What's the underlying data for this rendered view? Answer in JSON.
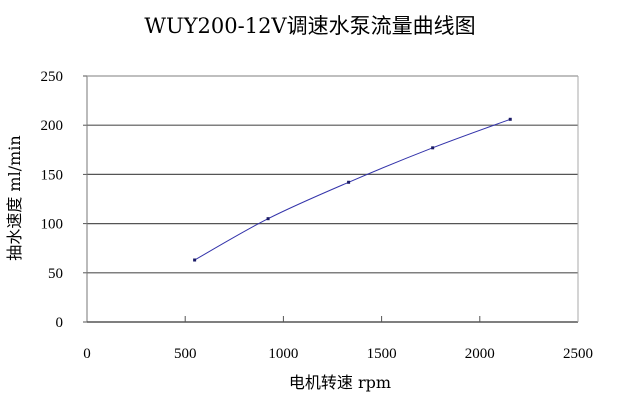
{
  "chart_data": {
    "type": "line",
    "title": "WUY200-12V调速水泵流量曲线图",
    "xlabel": "电机转速 rpm",
    "ylabel": "抽水速度 ml/min",
    "xlim": [
      0,
      2500
    ],
    "ylim": [
      0,
      250
    ],
    "xticks": [
      "0",
      "500",
      "1000",
      "1500",
      "2000",
      "2500"
    ],
    "yticks": [
      "0",
      "50",
      "100",
      "150",
      "200",
      "250"
    ],
    "grid": "horizontal",
    "legend": "none",
    "series": [
      {
        "color": "#3333aa",
        "smooth": true,
        "x": [
          548,
          922,
          1332,
          1760,
          2155
        ],
        "y": [
          63,
          105,
          142,
          177,
          206
        ]
      }
    ]
  }
}
